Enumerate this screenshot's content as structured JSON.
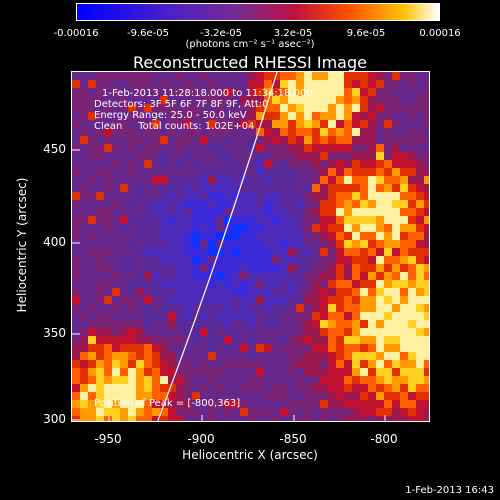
{
  "colorbar": {
    "ticks": [
      "-0.00016",
      "-9.6e-05",
      "-3.2e-05",
      "3.2e-05",
      "9.6e-05",
      "0.00016"
    ],
    "units": "(photons cm⁻² s⁻¹ asec⁻²)"
  },
  "title": "Reconstructed RHESSI Image",
  "annotations": {
    "time": "1-Feb-2013 11:28:18.000 to 11:34:18.000",
    "detectors": "Detectors: 3F 5F 6F 7F 8F 9F, Att:0",
    "energy": "Energy Range: 25.0 - 50.0 keV",
    "clean": "Clean     Total counts: 1.02E+04",
    "peak": "Position of Peak = [-800,363]"
  },
  "axes": {
    "xlabel": "Heliocentric X (arcsec)",
    "ylabel": "Heliocentric Y (arcsec)",
    "xticks": [
      "-950",
      "-900",
      "-850",
      "-800"
    ],
    "yticks": [
      "450",
      "400",
      "350",
      "300"
    ]
  },
  "footer_date": "1-Feb-2013 16:43",
  "colors": {
    "low": "#0000ff",
    "mid": "#6a2aa0",
    "high": "#ffffff"
  }
}
